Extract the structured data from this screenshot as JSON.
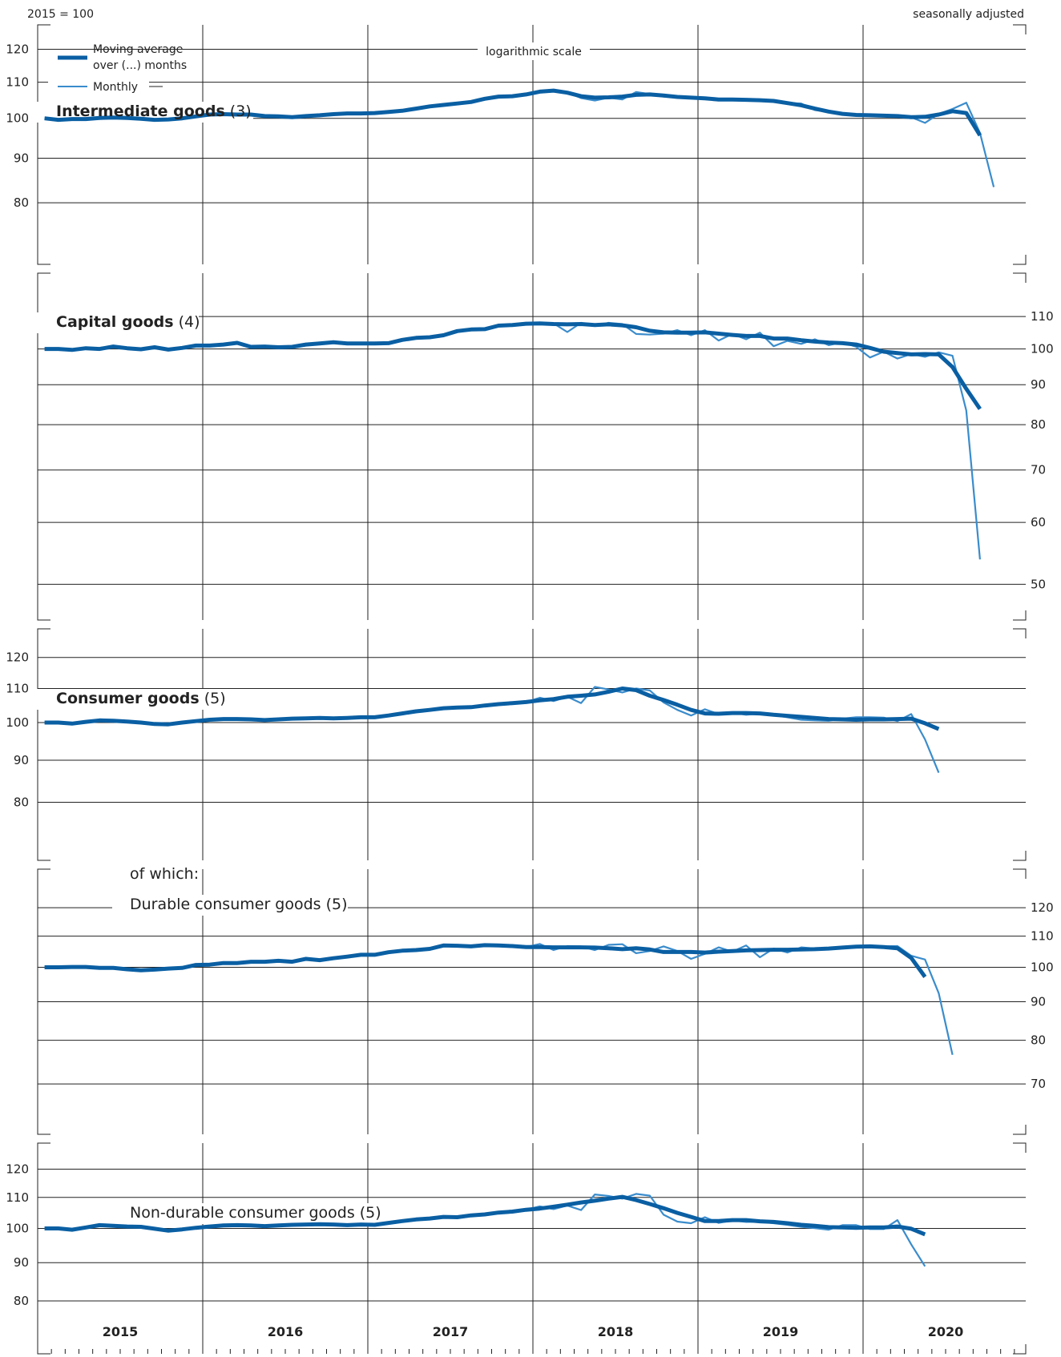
{
  "header": {
    "base_label": "2015 = 100",
    "adjustment_label": "seasonally adjusted",
    "scale_note": "logarithmic scale"
  },
  "legend": {
    "moving_average_line1": "Moving average",
    "moving_average_line2": "over (...) months",
    "monthly": "Monthly"
  },
  "colors": {
    "moving_average": "#0a5fa3",
    "monthly": "#3a8ccc",
    "grid": "#222222"
  },
  "years": [
    "2015",
    "2016",
    "2017",
    "2018",
    "2019",
    "2020"
  ],
  "panels": [
    {
      "title_bold": "Intermediate goods",
      "title_rest": " (3)"
    },
    {
      "title_bold": "Capital goods",
      "title_rest": " (4)"
    },
    {
      "title_bold": "Consumer goods",
      "title_rest": " (5)"
    },
    {
      "title_pre": "of which:",
      "title_bold": "",
      "title_rest": "Durable consumer goods (5)"
    },
    {
      "title_bold": "",
      "title_rest": "Non-durable consumer goods (5)"
    }
  ],
  "chart_data": [
    {
      "type": "line",
      "title": "Intermediate goods (3)",
      "y_scale": "log",
      "ylim": [
        68,
        128
      ],
      "y_ticks": [
        80,
        90,
        100,
        110,
        120
      ],
      "tick_side": "left",
      "x_start": "2015-01",
      "series": [
        {
          "name": "Moving average over (...) months",
          "values": [
            100,
            99.6,
            99.8,
            99.8,
            100.1,
            100.2,
            100.1,
            99.9,
            99.6,
            99.7,
            100,
            100.5,
            101,
            101.1,
            101,
            101,
            100.6,
            100.5,
            100.3,
            100.6,
            100.8,
            101.1,
            101.3,
            101.3,
            101.4,
            101.7,
            102,
            102.6,
            103.2,
            103.6,
            104,
            104.4,
            105.3,
            105.9,
            106,
            106.5,
            107.3,
            107.6,
            107,
            106,
            105.6,
            105.7,
            105.9,
            106.4,
            106.5,
            106.2,
            105.8,
            105.6,
            105.4,
            105.1,
            105.1,
            105,
            104.9,
            104.7,
            104.1,
            103.5,
            102.6,
            101.8,
            101.2,
            100.9,
            100.8,
            100.7,
            100.6,
            100.3,
            100.4,
            101,
            101.9,
            101.4,
            95.6
          ]
        },
        {
          "name": "Monthly",
          "values": [
            100,
            99.6,
            99.8,
            99.8,
            100.1,
            100.2,
            100.1,
            99.9,
            99.6,
            99.7,
            100,
            100.5,
            101,
            101.1,
            101,
            101,
            100.6,
            100.5,
            100.3,
            100.6,
            100.8,
            101.1,
            101.3,
            101.3,
            101.4,
            101.7,
            102,
            102.6,
            103.2,
            103.6,
            104,
            104.4,
            105.3,
            105.9,
            106,
            106.5,
            107.3,
            107.6,
            107.1,
            105.5,
            104.8,
            105.6,
            105.1,
            107.2,
            106.6,
            105.9,
            105.8,
            105.6,
            105.4,
            105.1,
            105.1,
            105,
            104.9,
            104.7,
            104.1,
            104,
            102.2,
            101.7,
            101.2,
            100.9,
            100.8,
            100.7,
            100.6,
            100.3,
            98.8,
            101.2,
            102.5,
            104.2,
            96.2,
            83.4
          ]
        }
      ]
    },
    {
      "type": "line",
      "title": "Capital goods (4)",
      "y_scale": "log",
      "ylim": [
        45,
        125
      ],
      "y_ticks": [
        50,
        60,
        70,
        80,
        90,
        100,
        110
      ],
      "tick_side": "right",
      "x_start": "2015-01",
      "series": [
        {
          "name": "Moving average over (...) months",
          "values": [
            100,
            100,
            99.7,
            100.2,
            100,
            100.7,
            100.2,
            99.9,
            100.5,
            99.8,
            100.3,
            101,
            101,
            101.3,
            101.8,
            100.6,
            100.7,
            100.5,
            100.6,
            101.3,
            101.6,
            102,
            101.6,
            101.6,
            101.6,
            101.7,
            102.7,
            103.3,
            103.5,
            104.1,
            105.4,
            105.9,
            106,
            107.1,
            107.3,
            107.7,
            107.8,
            107.6,
            107.5,
            107.6,
            107.3,
            107.5,
            107.2,
            106.6,
            105.5,
            105,
            104.9,
            104.9,
            105,
            104.6,
            104.2,
            103.9,
            103.9,
            103.1,
            103.1,
            102.6,
            102.2,
            101.9,
            101.7,
            101.3,
            100.3,
            99.2,
            98.8,
            98.4,
            98.5,
            98.4,
            94.8,
            88.9,
            83.8
          ]
        },
        {
          "name": "Monthly",
          "values": [
            100,
            100,
            99.7,
            100.2,
            100,
            100.7,
            100.2,
            99.9,
            100.5,
            99.8,
            100.3,
            101,
            101,
            101.3,
            101.8,
            100.6,
            100.7,
            100.5,
            100.6,
            101.3,
            101.6,
            102,
            101.6,
            101.6,
            101.6,
            101.7,
            102.7,
            103.3,
            103.5,
            104.1,
            105.4,
            105.9,
            106,
            107.1,
            107.3,
            107.7,
            107.8,
            107.8,
            105.1,
            108,
            107,
            108,
            107.6,
            104.5,
            104.3,
            104.6,
            105.7,
            104.1,
            105.7,
            102.5,
            104.5,
            102.9,
            104.9,
            100.8,
            102.4,
            101.5,
            102.9,
            101.1,
            102,
            100.6,
            97.5,
            99.2,
            97.2,
            98.5,
            97.7,
            99,
            98,
            83.4,
            53.8
          ]
        }
      ]
    },
    {
      "type": "line",
      "title": "Consumer goods (5)",
      "y_scale": "log",
      "ylim": [
        68,
        130
      ],
      "y_ticks": [
        80,
        90,
        100,
        110,
        120
      ],
      "tick_side": "left",
      "x_start": "2015-01",
      "series": [
        {
          "name": "Moving average over (...) months",
          "values": [
            100,
            100,
            99.7,
            100.2,
            100.6,
            100.5,
            100.3,
            100,
            99.6,
            99.5,
            100,
            100.4,
            100.8,
            101,
            101,
            100.9,
            100.7,
            100.9,
            101.1,
            101.2,
            101.3,
            101.2,
            101.3,
            101.5,
            101.5,
            102,
            102.6,
            103.2,
            103.6,
            104.1,
            104.3,
            104.4,
            104.9,
            105.3,
            105.6,
            105.9,
            106.4,
            106.8,
            107.5,
            107.8,
            108.2,
            109,
            110,
            109.5,
            107.8,
            106.5,
            105.1,
            103.6,
            102.6,
            102.5,
            102.7,
            102.7,
            102.6,
            102.2,
            101.9,
            101.6,
            101.3,
            101,
            100.9,
            100.8,
            100.9,
            100.9,
            101,
            101.1,
            99.8,
            98.2
          ]
        },
        {
          "name": "Monthly",
          "values": [
            100,
            100,
            99.7,
            100.2,
            100.6,
            100.5,
            100.3,
            100,
            99.6,
            99.5,
            100,
            100.4,
            100.8,
            101,
            101,
            100.9,
            100.7,
            100.9,
            101.1,
            101.2,
            101.3,
            101.2,
            101.3,
            101.5,
            101.5,
            102,
            102.6,
            103.2,
            103.6,
            104.1,
            104.3,
            104.4,
            104.9,
            105.3,
            105.6,
            105.9,
            107.2,
            106.2,
            107.5,
            105.6,
            110.5,
            109.7,
            108.8,
            110,
            109.4,
            105.8,
            103.6,
            102,
            103.8,
            102.4,
            102.8,
            102.2,
            102.6,
            102.1,
            101.5,
            100.8,
            100.6,
            100.5,
            101.1,
            101.5,
            101.5,
            101.4,
            100.4,
            102.4,
            95.4,
            86.9
          ]
        }
      ]
    },
    {
      "type": "line",
      "title": "Durable consumer goods (5)",
      "y_scale": "log",
      "ylim": [
        60,
        135
      ],
      "y_ticks": [
        70,
        80,
        90,
        100,
        110,
        120
      ],
      "tick_side": "right",
      "x_start": "2015-01",
      "series": [
        {
          "name": "Moving average over (...) months",
          "values": [
            100,
            100,
            100.1,
            100.1,
            99.8,
            99.8,
            99.4,
            99.1,
            99.3,
            99.6,
            99.8,
            100.7,
            100.8,
            101.3,
            101.3,
            101.7,
            101.7,
            102,
            101.7,
            102.6,
            102.2,
            102.8,
            103.3,
            103.9,
            103.9,
            104.7,
            105.2,
            105.4,
            105.8,
            106.9,
            106.8,
            106.6,
            107,
            106.9,
            106.7,
            106.4,
            106.4,
            106.3,
            106.3,
            106.3,
            106.2,
            106,
            105.7,
            106,
            105.6,
            104.8,
            104.8,
            104.8,
            104.6,
            104.9,
            105.1,
            105.3,
            105.4,
            105.5,
            105.5,
            105.6,
            105.7,
            105.9,
            106.2,
            106.5,
            106.6,
            106.4,
            106,
            102.9,
            97.1
          ]
        },
        {
          "name": "Monthly",
          "values": [
            100,
            100,
            100.1,
            100.1,
            99.8,
            99.8,
            99.4,
            99.1,
            99.3,
            99.6,
            99.8,
            100.7,
            100.8,
            101.3,
            101.3,
            101.7,
            101.7,
            102,
            101.7,
            102.6,
            102.2,
            102.8,
            103.3,
            103.9,
            103.9,
            104.7,
            105.2,
            105.4,
            105.8,
            106.9,
            106.8,
            106.6,
            107,
            106.9,
            106.7,
            106.4,
            107.4,
            105.4,
            106.7,
            106.6,
            105.4,
            107.1,
            107.3,
            104.4,
            105.1,
            106.6,
            105.1,
            102.6,
            104.2,
            106.3,
            104.9,
            106.9,
            103.1,
            105.9,
            104.6,
            106.3,
            105.9,
            106.1,
            106.2,
            106.5,
            106.7,
            106.6,
            106.7,
            103.6,
            102.4,
            92.4,
            76.5
          ]
        }
      ]
    },
    {
      "type": "line",
      "title": "Non-durable consumer goods (5)",
      "y_scale": "log",
      "ylim": [
        68,
        130
      ],
      "y_ticks": [
        80,
        90,
        100,
        110,
        120
      ],
      "tick_side": "left",
      "x_start": "2015-01",
      "series": [
        {
          "name": "Moving average over (...) months",
          "values": [
            100,
            100,
            99.6,
            100.3,
            101,
            100.8,
            100.6,
            100.5,
            99.9,
            99.3,
            99.7,
            100.2,
            100.6,
            100.9,
            101,
            100.9,
            100.7,
            100.9,
            101.1,
            101.2,
            101.3,
            101.2,
            101,
            101.2,
            101.1,
            101.7,
            102.3,
            102.8,
            103.1,
            103.6,
            103.5,
            104.1,
            104.4,
            105,
            105.3,
            105.9,
            106.3,
            106.9,
            107.6,
            108.3,
            108.9,
            109.6,
            110.2,
            109.1,
            107.8,
            106.4,
            104.9,
            103.6,
            102.3,
            102.3,
            102.6,
            102.6,
            102.2,
            102,
            101.6,
            101.1,
            100.8,
            100.4,
            100.3,
            100.2,
            100.3,
            100.3,
            100.6,
            99.9,
            98.2
          ]
        },
        {
          "name": "Monthly",
          "values": [
            100,
            100,
            99.6,
            100.3,
            101,
            100.8,
            100.6,
            100.5,
            99.9,
            99.3,
            99.7,
            100.2,
            100.6,
            100.9,
            101,
            100.9,
            100.7,
            100.9,
            101.1,
            101.2,
            101.3,
            101.2,
            101,
            101.2,
            101.1,
            101.7,
            102.3,
            102.8,
            103.1,
            103.6,
            103.5,
            104.1,
            104.4,
            105,
            105.3,
            105.9,
            107,
            106.1,
            107.3,
            105.8,
            111,
            110.5,
            109.6,
            111.2,
            110.6,
            104.3,
            102.1,
            101.6,
            103.5,
            101.7,
            102.5,
            102,
            102.1,
            101.6,
            101.1,
            100.5,
            100.1,
            99.6,
            101,
            101,
            99.8,
            99.8,
            102.6,
            95.2,
            89
          ]
        }
      ]
    }
  ]
}
